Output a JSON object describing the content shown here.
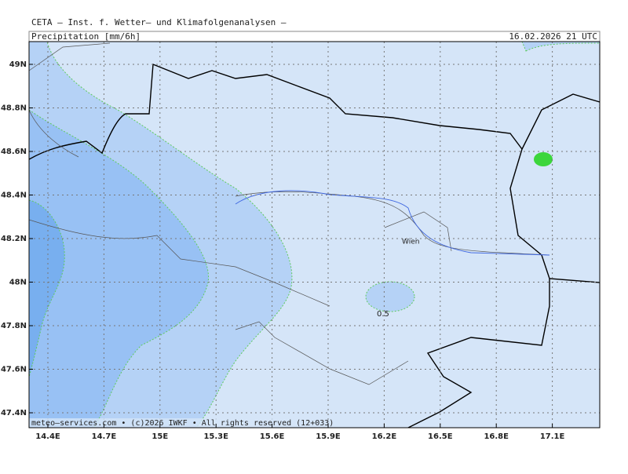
{
  "header": {
    "source": "CETA  –  Inst. f. Wetter–  und Klimafolgenanalysen  –",
    "title": "Precipitation  [mm/6h]",
    "date": "16.02.2026  21  UTC"
  },
  "map": {
    "lat_labels": [
      "49N",
      "48.8N",
      "48.6N",
      "48.4N",
      "48.2N",
      "48N",
      "47.8N",
      "47.6N",
      "47.4N"
    ],
    "lon_labels": [
      "14.4E",
      "14.7E",
      "15E",
      "15.3E",
      "15.6E",
      "15.9E",
      "16.2E",
      "16.5E",
      "16.8E",
      "17.1E"
    ],
    "city": "Wien",
    "contour_label": "0.5",
    "footer": "meteo–services.com  •  (c)2026  IWKF  •  All  rights  reserved  (12+033)"
  }
}
